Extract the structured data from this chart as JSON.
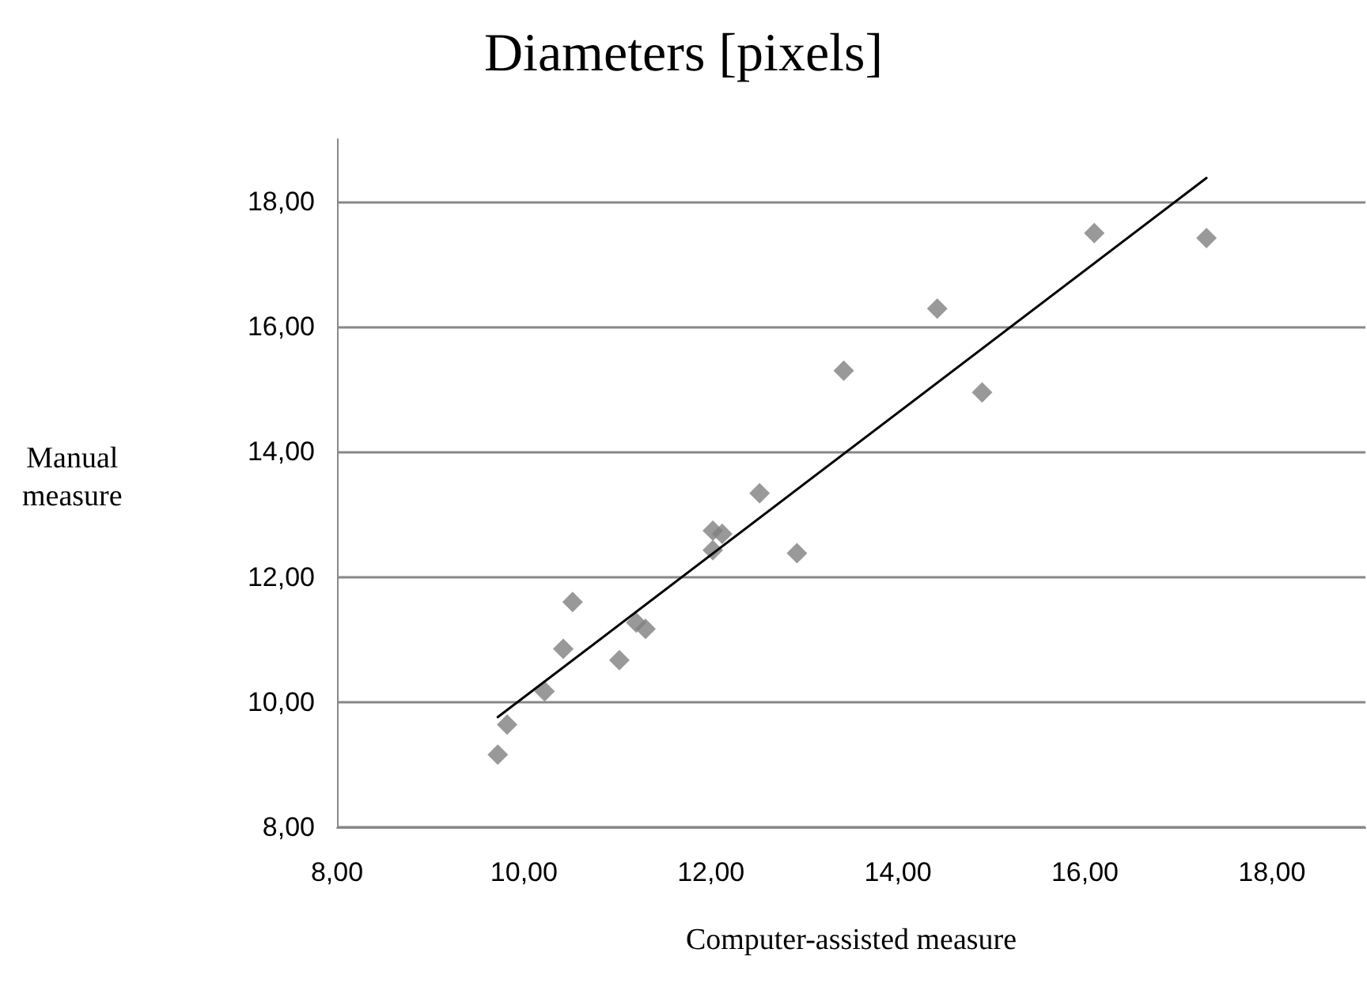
{
  "chart_data": {
    "type": "scatter",
    "title": "Diameters [pixels]",
    "xlabel": "Computer-assisted measure",
    "ylabel": "Manual\nmeasure",
    "xlim": [
      8,
      19
    ],
    "ylim": [
      8,
      19
    ],
    "xticks": [
      {
        "value": 8,
        "label": "8,00"
      },
      {
        "value": 10,
        "label": "10,00"
      },
      {
        "value": 12,
        "label": "12,00"
      },
      {
        "value": 14,
        "label": "14,00"
      },
      {
        "value": 16,
        "label": "16,00"
      },
      {
        "value": 18,
        "label": "18,00"
      }
    ],
    "yticks": [
      {
        "value": 8,
        "label": "8,00"
      },
      {
        "value": 10,
        "label": "10,00"
      },
      {
        "value": 12,
        "label": "12,00"
      },
      {
        "value": 14,
        "label": "14,00"
      },
      {
        "value": 16,
        "label": "16,00"
      },
      {
        "value": 18,
        "label": "18,00"
      }
    ],
    "grid": "y",
    "marker": "diamond",
    "series": [
      {
        "color": "#808080",
        "x": [
          9.72,
          9.82,
          10.22,
          10.42,
          10.52,
          11.02,
          11.2,
          11.3,
          12.02,
          12.02,
          12.12,
          12.52,
          12.92,
          13.42,
          14.42,
          14.9,
          16.1,
          17.3
        ],
        "values": [
          9.16,
          9.64,
          10.17,
          10.85,
          11.6,
          10.67,
          11.27,
          11.17,
          12.74,
          12.43,
          12.69,
          13.34,
          12.38,
          15.3,
          16.29,
          14.95,
          17.5,
          17.42
        ]
      },
      {
        "type": "line",
        "color": "#000000",
        "marker": "none",
        "line_style": "solid",
        "x": [
          9.72,
          17.3
        ],
        "values": [
          9.76,
          18.38
        ]
      }
    ]
  }
}
